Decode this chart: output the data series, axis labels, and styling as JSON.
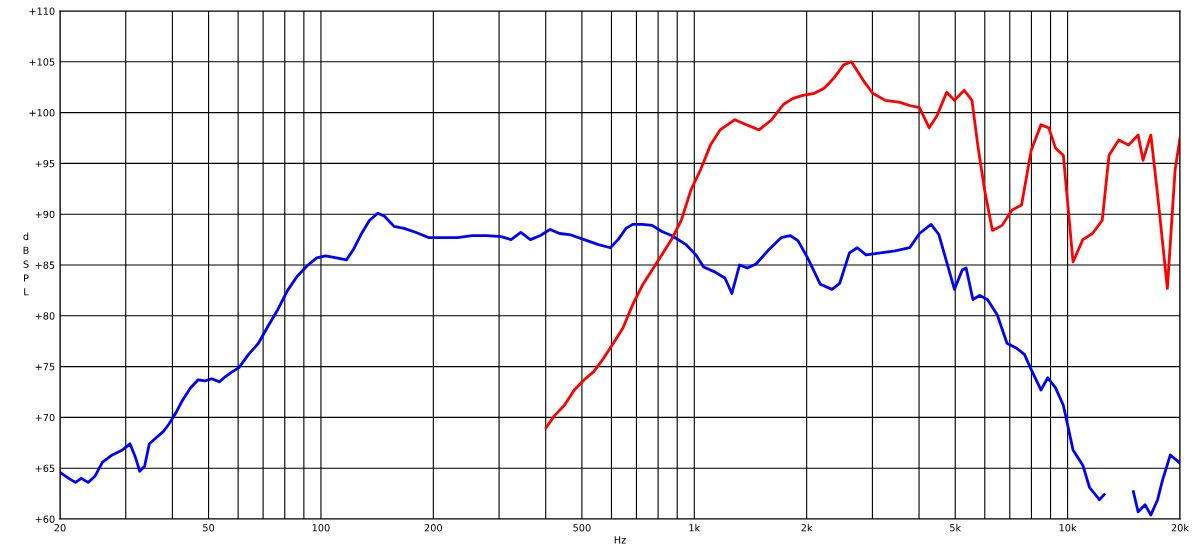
{
  "chart_data": {
    "type": "line",
    "xlabel": "Hz",
    "ylabel": "dB SPL",
    "log": "x",
    "grid": true,
    "marker": "none",
    "line_style": "solid",
    "xlim": [
      20,
      20000
    ],
    "ylim": [
      60,
      110
    ],
    "xticks": [
      20,
      {
        "value": 30,
        "label": null
      },
      {
        "value": 40,
        "label": null
      },
      50,
      {
        "value": 60,
        "label": null
      },
      {
        "value": 70,
        "label": null
      },
      {
        "value": 80,
        "label": null
      },
      {
        "value": 90,
        "label": null
      },
      100,
      200,
      {
        "value": 300,
        "label": null
      },
      {
        "value": 400,
        "label": null
      },
      500,
      {
        "value": 600,
        "label": null
      },
      {
        "value": 700,
        "label": null
      },
      {
        "value": 800,
        "label": null
      },
      {
        "value": 900,
        "label": null
      },
      {
        "value": 1000,
        "label": "1k"
      },
      {
        "value": 2000,
        "label": "2k"
      },
      {
        "value": 3000,
        "label": null
      },
      {
        "value": 4000,
        "label": null
      },
      {
        "value": 5000,
        "label": "5k"
      },
      {
        "value": 6000,
        "label": null
      },
      {
        "value": 7000,
        "label": null
      },
      {
        "value": 8000,
        "label": null
      },
      {
        "value": 9000,
        "label": null
      },
      {
        "value": 10000,
        "label": "10k"
      },
      {
        "value": 20000,
        "label": "20k"
      }
    ],
    "yticks": [
      {
        "value": 60,
        "label": "+60"
      },
      {
        "value": 65,
        "label": "+65"
      },
      {
        "value": 70,
        "label": "+70"
      },
      {
        "value": 75,
        "label": "+75"
      },
      {
        "value": 80,
        "label": "+80"
      },
      {
        "value": 85,
        "label": "+85"
      },
      {
        "value": 90,
        "label": "+90"
      },
      {
        "value": 95,
        "label": "+95"
      },
      {
        "value": 100,
        "label": "+100"
      },
      {
        "value": 105,
        "label": "+105"
      },
      {
        "value": 110,
        "label": "+110"
      }
    ],
    "series": [
      {
        "color": "#0000ff",
        "x": [
          20,
          21.1,
          22.0,
          22.8,
          23.8,
          24.8,
          26.0,
          27.6,
          29.4,
          30.8,
          31.9,
          32.7,
          33.7,
          34.7,
          36.2,
          37.8,
          39.1,
          40.8,
          42.6,
          44.7,
          46.9,
          48.9,
          51.0,
          53.5,
          55.4,
          57.4,
          60.3,
          64.0,
          68.0,
          72.2,
          76.6,
          81.4,
          86.4,
          91.7,
          97.4,
          103,
          110,
          117,
          122,
          128,
          135,
          142,
          148,
          157,
          167,
          180,
          194,
          212,
          232,
          254,
          278,
          304,
          323,
          343,
          364,
          387,
          411,
          436,
          463,
          507,
          554,
          596,
          625,
          656,
          684,
          726,
          771,
          819,
          869,
          951,
          1010,
          1059,
          1138,
          1209,
          1261,
          1322,
          1387,
          1464,
          1583,
          1711,
          1806,
          1895,
          2012,
          2176,
          2338,
          2452,
          2604,
          2732,
          2884,
          3156,
          3452,
          3776,
          4010,
          4308,
          4520,
          4742,
          4976,
          5220,
          5348,
          5576,
          5814,
          6100,
          6478,
          6880,
          7304,
          7662,
          7990,
          8484,
          8848,
          9284,
          9740,
          10340,
          10980,
          11450,
          12160,
          12530,
          13310,
          14130,
          15000,
          15450,
          16120,
          16710,
          17420,
          17950,
          18840,
          20000
        ],
        "values": [
          64.6,
          64.0,
          63.6,
          64.0,
          63.6,
          64.2,
          65.6,
          66.3,
          66.8,
          67.4,
          66.0,
          64.7,
          65.2,
          67.4,
          68.0,
          68.6,
          69.3,
          70.4,
          71.7,
          72.9,
          73.7,
          73.6,
          73.8,
          73.5,
          74.0,
          74.4,
          74.9,
          76.2,
          77.3,
          79.0,
          80.6,
          82.5,
          83.9,
          84.9,
          85.7,
          85.9,
          85.7,
          85.5,
          86.5,
          88.0,
          89.4,
          90.1,
          89.8,
          88.8,
          88.6,
          88.2,
          87.7,
          87.7,
          87.7,
          87.9,
          87.9,
          87.8,
          87.5,
          88.2,
          87.5,
          87.9,
          88.5,
          88.1,
          88.0,
          87.5,
          87.0,
          86.7,
          87.5,
          88.6,
          89.0,
          89.0,
          88.9,
          88.3,
          87.9,
          87.0,
          86.0,
          84.8,
          84.3,
          83.7,
          82.2,
          85.0,
          84.7,
          85.1,
          86.5,
          87.7,
          87.9,
          87.4,
          85.7,
          83.1,
          82.6,
          83.2,
          86.2,
          86.7,
          86.0,
          86.2,
          86.4,
          86.7,
          88.1,
          89.0,
          88.0,
          85.3,
          82.6,
          84.5,
          84.7,
          81.6,
          82.0,
          81.6,
          80.1,
          77.3,
          76.8,
          76.2,
          74.7,
          72.7,
          73.9,
          72.9,
          71.2,
          66.8,
          65.3,
          63.1,
          61.9,
          62.4,
          null,
          null,
          62.7,
          60.7,
          61.4,
          60.4,
          61.9,
          63.8,
          66.3,
          65.5
        ]
      },
      {
        "color": "#ff0000",
        "x": [
          401,
          423,
          449,
          477,
          507,
          538,
          571,
          607,
          644,
          684,
          726,
          771,
          819,
          869,
          923,
          980,
          1040,
          1105,
          1173,
          1284,
          1379,
          1491,
          1612,
          1732,
          1839,
          1952,
          2098,
          2228,
          2366,
          2512,
          2636,
          2832,
          3006,
          3250,
          3556,
          3776,
          4010,
          4258,
          4468,
          4742,
          4976,
          5284,
          5544,
          5746,
          5992,
          6288,
          6676,
          7088,
          7526,
          7990,
          8484,
          8902,
          9284,
          9740,
          10340,
          10980,
          11660,
          12380,
          12910,
          13710,
          14560,
          15450,
          15920,
          16710,
          17420,
          18500,
          19410,
          20000
        ],
        "values": [
          69.0,
          70.2,
          71.2,
          72.7,
          73.7,
          74.5,
          75.8,
          77.3,
          78.8,
          81.1,
          83.0,
          84.5,
          86.0,
          87.5,
          89.4,
          92.4,
          94.4,
          96.8,
          98.3,
          99.3,
          98.8,
          98.3,
          99.3,
          100.8,
          101.4,
          101.7,
          101.9,
          102.4,
          103.4,
          104.7,
          105.0,
          103.2,
          101.9,
          101.2,
          101.0,
          100.7,
          100.5,
          98.5,
          99.7,
          102.0,
          101.2,
          102.2,
          101.2,
          96.8,
          92.4,
          88.4,
          88.9,
          90.4,
          90.9,
          96.3,
          98.8,
          98.5,
          96.5,
          95.8,
          85.3,
          87.5,
          88.1,
          89.4,
          95.8,
          97.3,
          96.8,
          97.8,
          95.3,
          97.8,
          91.9,
          82.7,
          94.4,
          97.5
        ]
      }
    ]
  }
}
